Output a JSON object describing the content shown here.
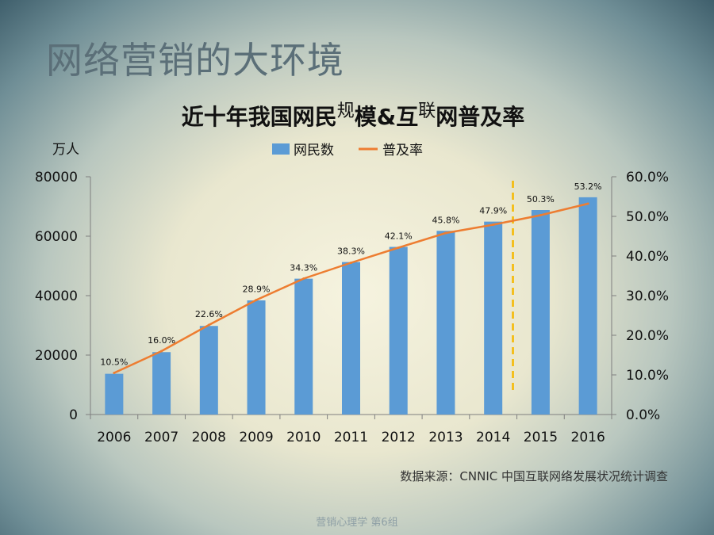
{
  "slide": {
    "title": "网络营销的大环境",
    "source": "数据来源：CNNIC 中国互联网络发展状况统计调查",
    "footer": "营销心理学 第6组"
  },
  "chart_data": {
    "type": "bar",
    "title_parts": [
      "近十年我国网民",
      "规",
      "模&互",
      "联",
      "网普及率"
    ],
    "y_unit": "万人",
    "categories": [
      "2006",
      "2007",
      "2008",
      "2009",
      "2010",
      "2011",
      "2012",
      "2013",
      "2014",
      "2015",
      "2016"
    ],
    "series": [
      {
        "name": "网民数",
        "type": "bar",
        "axis": "left",
        "color": "#5b9bd5",
        "values": [
          13700,
          21000,
          29800,
          38400,
          45700,
          51300,
          56400,
          61800,
          64900,
          68800,
          73100
        ]
      },
      {
        "name": "普及率",
        "type": "line",
        "axis": "right",
        "color": "#ed7d31",
        "values": [
          10.5,
          16.0,
          22.6,
          28.9,
          34.3,
          38.3,
          42.1,
          45.8,
          47.9,
          50.3,
          53.2
        ],
        "labels": [
          "10.5%",
          "16.0%",
          "22.6%",
          "28.9%",
          "34.3%",
          "38.3%",
          "42.1%",
          "45.8%",
          "47.9%",
          "50.3%",
          "53.2%"
        ]
      }
    ],
    "y_left": {
      "min": 0,
      "max": 80000,
      "ticks": [
        "0",
        "20000",
        "40000",
        "60000",
        "80000"
      ]
    },
    "y_right": {
      "min": 0,
      "max": 60,
      "ticks": [
        "0.0%",
        "10.0%",
        "20.0%",
        "30.0%",
        "40.0%",
        "50.0%",
        "60.0%"
      ]
    },
    "marker_between": [
      "2014",
      "2015"
    ],
    "marker_color": "#f5b800",
    "legend": "top",
    "grid": false
  }
}
